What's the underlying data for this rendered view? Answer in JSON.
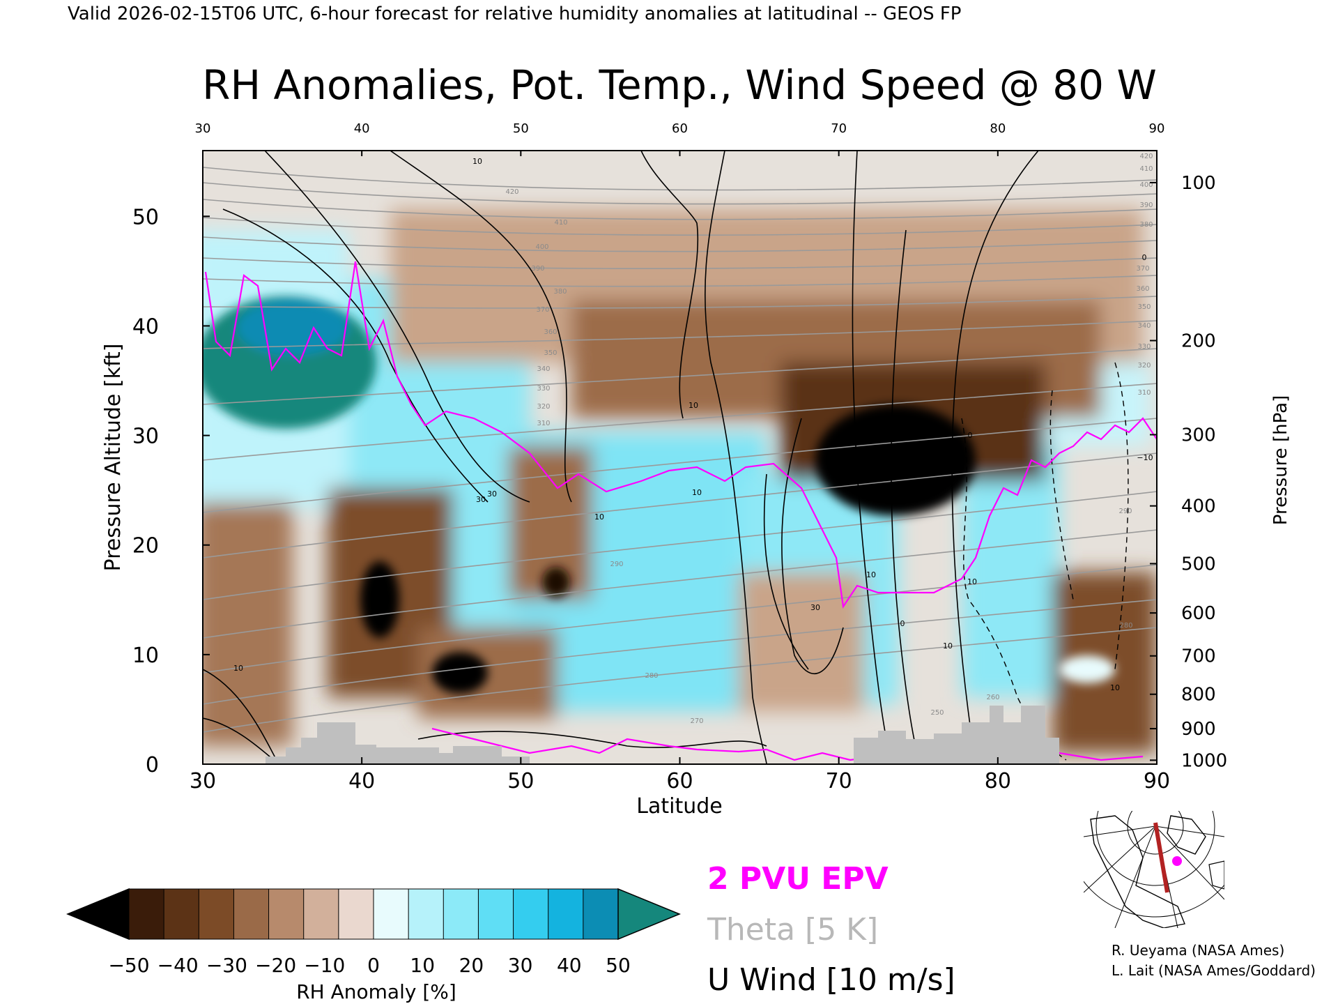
{
  "header": {
    "valid_line": "Valid 2026-02-15T06 UTC, 6-hour forecast for relative humidity anomalies at latitudinal -- GEOS FP"
  },
  "chart_data": {
    "type": "heatmap",
    "title": "RH Anomalies, Pot. Temp., Wind Speed @ 80 W",
    "xlabel": "Latitude",
    "ylabel_left": "Pressure Altitude [kft]",
    "ylabel_right": "Pressure [hPa]",
    "xlim": [
      30,
      90
    ],
    "ylim": [
      0,
      56
    ],
    "x_ticks": [
      "30",
      "40",
      "50",
      "60",
      "70",
      "80",
      "90"
    ],
    "y_ticks_left": [
      "0",
      "10",
      "20",
      "30",
      "40",
      "50"
    ],
    "pressure_ticks": [
      {
        "label": "1000",
        "kft": 0.36
      },
      {
        "label": "900",
        "kft": 3.24
      },
      {
        "label": "800",
        "kft": 6.38
      },
      {
        "label": "700",
        "kft": 9.88
      },
      {
        "label": "600",
        "kft": 13.8
      },
      {
        "label": "500",
        "kft": 18.3
      },
      {
        "label": "400",
        "kft": 23.57
      },
      {
        "label": "300",
        "kft": 30.07
      },
      {
        "label": "200",
        "kft": 38.66
      },
      {
        "label": "100",
        "kft": 53.08
      }
    ],
    "colorbar": {
      "label": "RH Anomaly [%]",
      "ticks": [
        "−50",
        "−40",
        "−30",
        "−20",
        "−10",
        "0",
        "10",
        "20",
        "30",
        "40",
        "50"
      ],
      "colors": [
        "#000000",
        "#3a1c0a",
        "#5c3316",
        "#7c4b27",
        "#9a6a48",
        "#b78a6c",
        "#d2b09b",
        "#ead8cf",
        "#e8fbfd",
        "#b6f2fa",
        "#8ceaf8",
        "#5fdef5",
        "#34cdef",
        "#14b3df",
        "#0c8db4",
        "#15877c"
      ]
    },
    "contour_label_values": [
      "10",
      "30",
      "10",
      "10",
      "30",
      "10",
      "0",
      "10",
      "10",
      "0",
      "−10",
      "10",
      "10",
      "30",
      "10",
      "0"
    ],
    "theta_label_values": [
      "420",
      "410",
      "400",
      "390",
      "380",
      "370",
      "360",
      "350",
      "340",
      "330",
      "320",
      "310",
      "290",
      "280",
      "270",
      "260",
      "250",
      "420",
      "410",
      "400",
      "390",
      "380",
      "370",
      "360",
      "350",
      "340",
      "330",
      "320",
      "310",
      "290",
      "280"
    ]
  },
  "legend": {
    "epv_label": "2 PVU EPV",
    "epv_color": "#ff00ff",
    "theta_label": "Theta [5 K]",
    "theta_color": "#b8b8b8",
    "wind_label": "U Wind [10 m/s]",
    "wind_color": "#000000"
  },
  "credits": {
    "line1": "R. Ueyama (NASA Ames)",
    "line2": "L. Lait (NASA Ames/Goddard)"
  },
  "inset_map": {
    "marker_color": "#ff00ff",
    "section_color": "#b22222"
  }
}
